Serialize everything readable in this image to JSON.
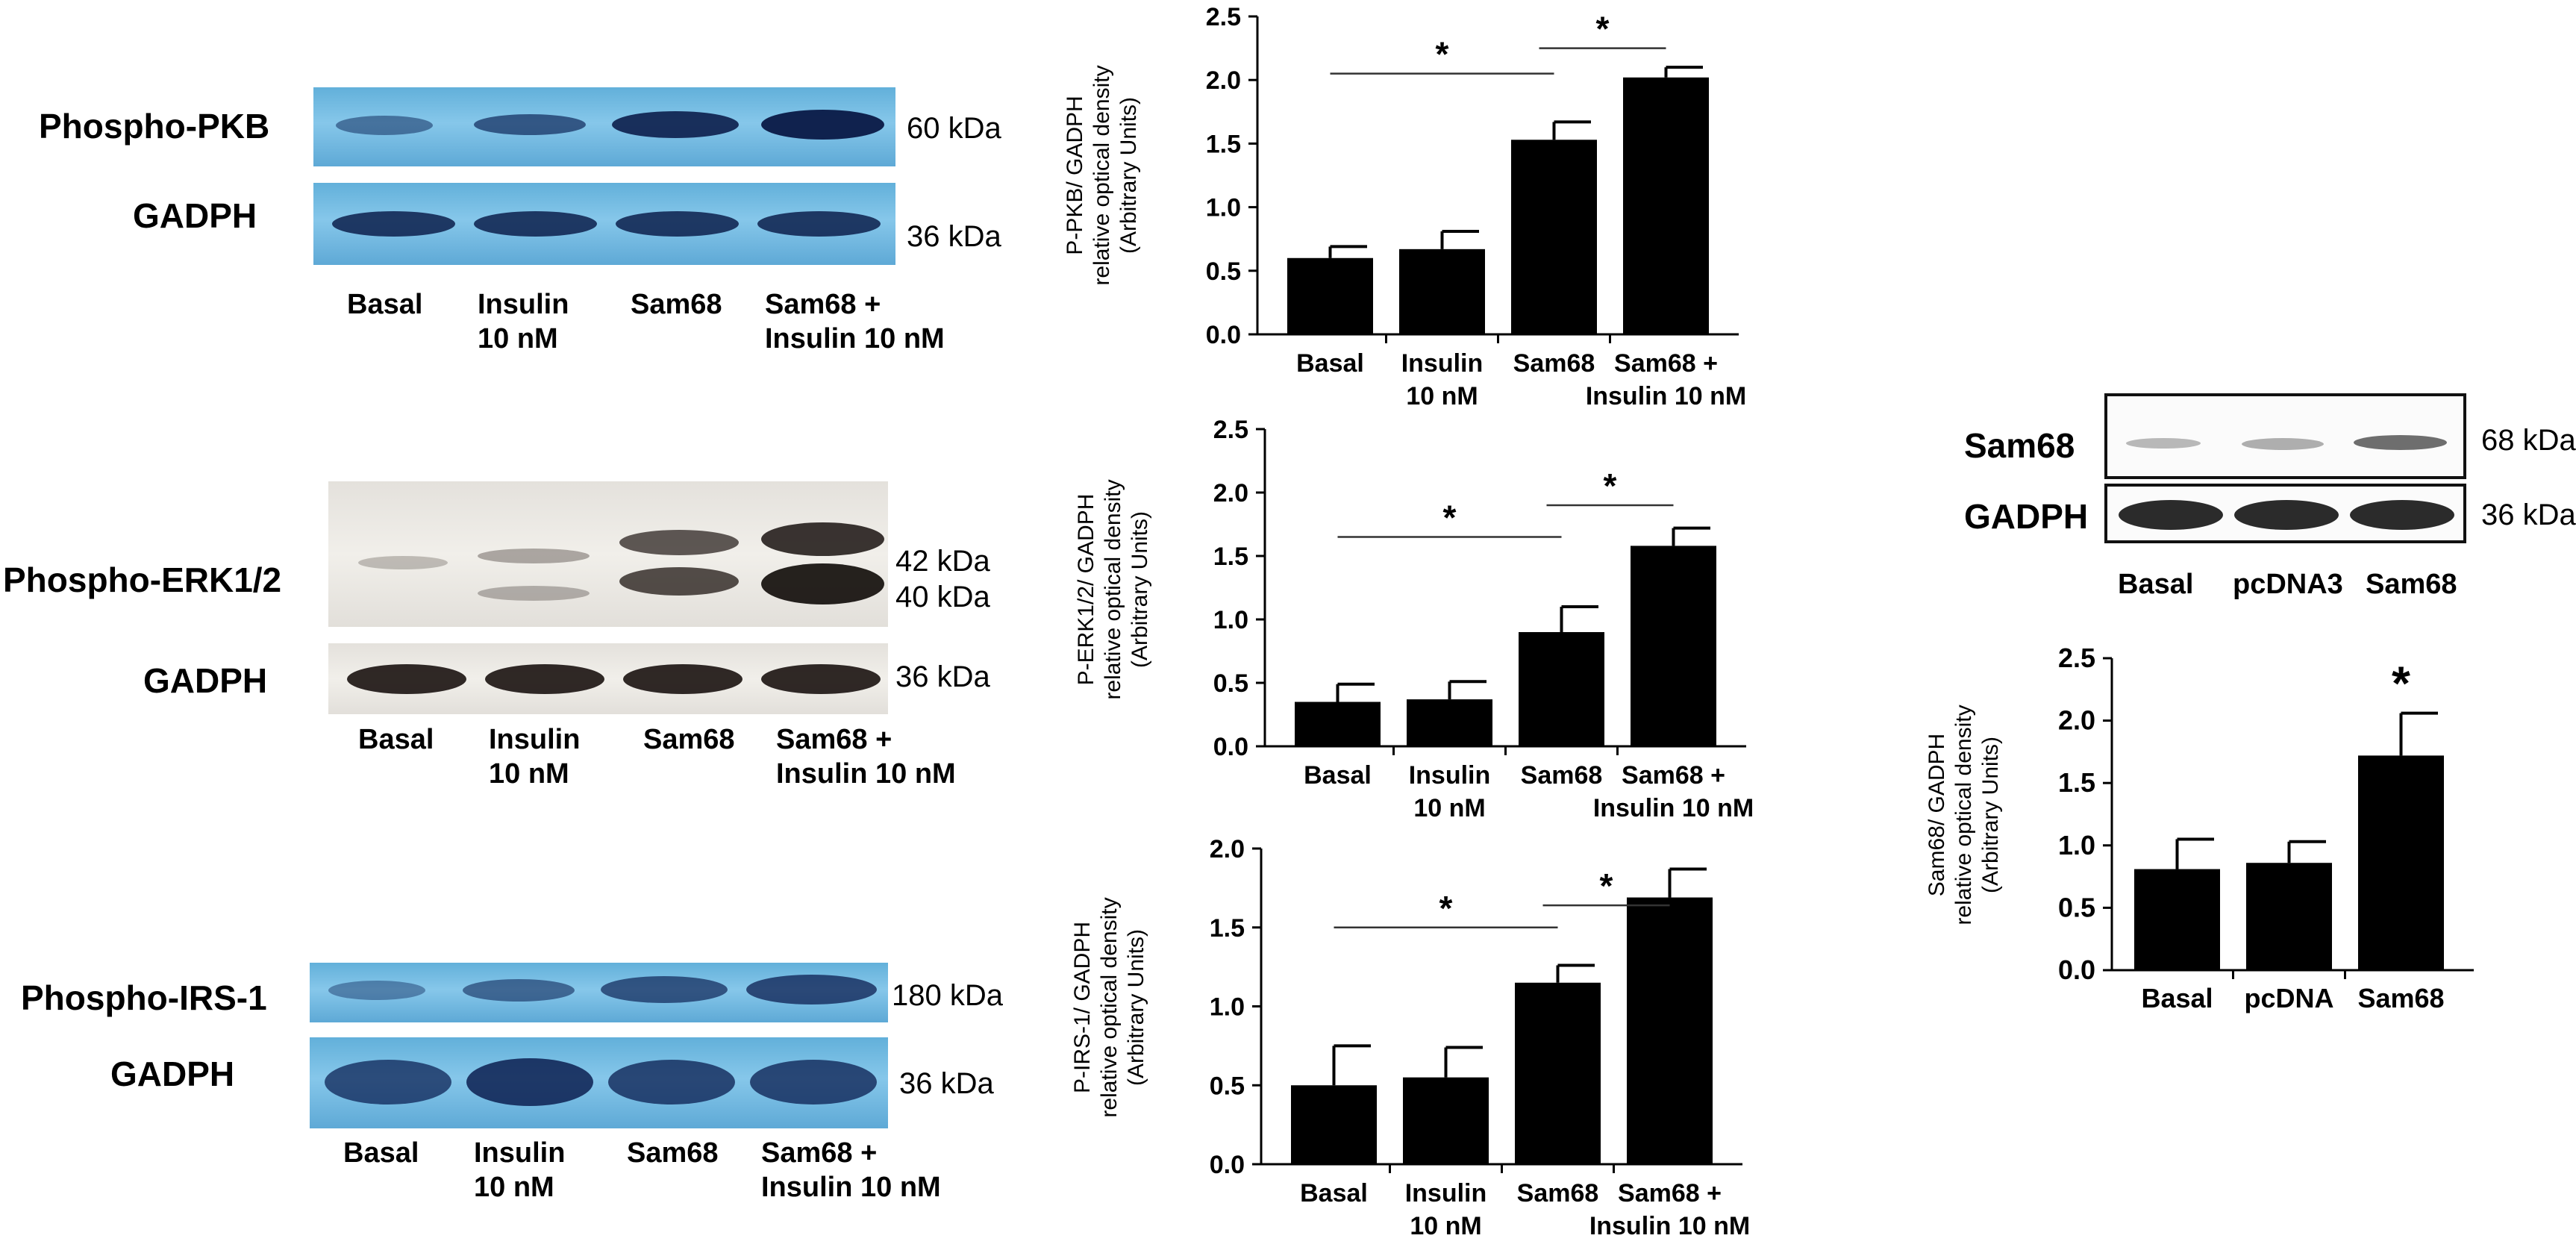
{
  "blots": {
    "pkb": {
      "label": "Phospho-PKB",
      "kda": "60 kDa",
      "control_label": "GADPH",
      "control_kda": "36 kDa",
      "lanes": [
        "Basal",
        "Insulin\n10 nM",
        "Sam68",
        "Sam68 +\nInsulin 10 nM"
      ]
    },
    "erk": {
      "label": "Phospho-ERK1/2",
      "kda_top": "42 kDa",
      "kda_bottom": "40 kDa",
      "control_label": "GADPH",
      "control_kda": "36 kDa",
      "lanes": [
        "Basal",
        "Insulin\n10 nM",
        "Sam68",
        "Sam68 +\nInsulin 10 nM"
      ]
    },
    "irs": {
      "label": "Phospho-IRS-1",
      "kda": "180 kDa",
      "control_label": "GADPH",
      "control_kda": "36 kDa",
      "lanes": [
        "Basal",
        "Insulin\n10 nM",
        "Sam68",
        "Sam68 +\nInsulin 10 nM"
      ]
    },
    "sam68": {
      "label": "Sam68",
      "kda": "68 kDa",
      "control_label": "GADPH",
      "control_kda": "36 kDa",
      "lanes": [
        "Basal",
        "pcDNA3",
        "Sam68"
      ]
    }
  },
  "chart_data": [
    {
      "id": "pkb",
      "type": "bar",
      "categories": [
        "Basal",
        "Insulin\n10 nM",
        "Sam68",
        "Sam68 +\nInsulin 10 nM"
      ],
      "values": [
        0.6,
        0.67,
        1.53,
        2.02
      ],
      "errors": [
        0.09,
        0.14,
        0.14,
        0.08
      ],
      "ylabel_lines": [
        "P-PKB/ GADPH",
        "relative optical density",
        "(Arbitrary Units)"
      ],
      "ylim": [
        0,
        2.5
      ],
      "ticks": [
        "0.0",
        "0.5",
        "1.0",
        "1.5",
        "2.0",
        "2.5"
      ],
      "significance": [
        {
          "from": 0,
          "to": 2,
          "y": 2.05,
          "label": "*"
        },
        {
          "from": 2,
          "to": 3,
          "y": 2.25,
          "label": "*"
        }
      ]
    },
    {
      "id": "erk",
      "type": "bar",
      "categories": [
        "Basal",
        "Insulin\n10 nM",
        "Sam68",
        "Sam68 +\nInsulin 10 nM"
      ],
      "values": [
        0.35,
        0.37,
        0.9,
        1.58
      ],
      "errors": [
        0.14,
        0.14,
        0.2,
        0.14
      ],
      "ylabel_lines": [
        "P-ERK1/2/ GADPH",
        "relative optical density",
        "(Arbitrary Units)"
      ],
      "ylim": [
        0,
        2.5
      ],
      "ticks": [
        "0.0",
        "0.5",
        "1.0",
        "1.5",
        "2.0",
        "2.5"
      ],
      "significance": [
        {
          "from": 0,
          "to": 2,
          "y": 1.65,
          "label": "*"
        },
        {
          "from": 2,
          "to": 3,
          "y": 1.9,
          "label": "*"
        }
      ]
    },
    {
      "id": "irs",
      "type": "bar",
      "categories": [
        "Basal",
        "Insulin\n10 nM",
        "Sam68",
        "Sam68 +\nInsulin 10 nM"
      ],
      "values": [
        0.5,
        0.55,
        1.15,
        1.69
      ],
      "errors": [
        0.25,
        0.19,
        0.11,
        0.18
      ],
      "ylabel_lines": [
        "P-IRS-1/ GADPH",
        "relative optical density",
        "(Arbitrary Units)"
      ],
      "ylim": [
        0,
        2.0
      ],
      "ticks": [
        "0.0",
        "0.5",
        "1.0",
        "1.5",
        "2.0"
      ],
      "significance": [
        {
          "from": 0,
          "to": 2,
          "y": 1.5,
          "label": "*"
        },
        {
          "from": 2,
          "to": 3,
          "y": 1.64,
          "label": "*"
        }
      ]
    },
    {
      "id": "sam68",
      "type": "bar",
      "categories": [
        "Basal",
        "pcDNA",
        "Sam68"
      ],
      "values": [
        0.81,
        0.86,
        1.72
      ],
      "errors": [
        0.24,
        0.17,
        0.34
      ],
      "ylabel_lines": [
        "Sam68/ GADPH",
        "relative optical density",
        "(Arbitrary Units)"
      ],
      "ylim": [
        0,
        2.5
      ],
      "ticks": [
        "0.0",
        "0.5",
        "1.0",
        "1.5",
        "2.0",
        "2.5"
      ],
      "bar_stars": [
        {
          "index": 2,
          "label": "*"
        }
      ]
    }
  ]
}
